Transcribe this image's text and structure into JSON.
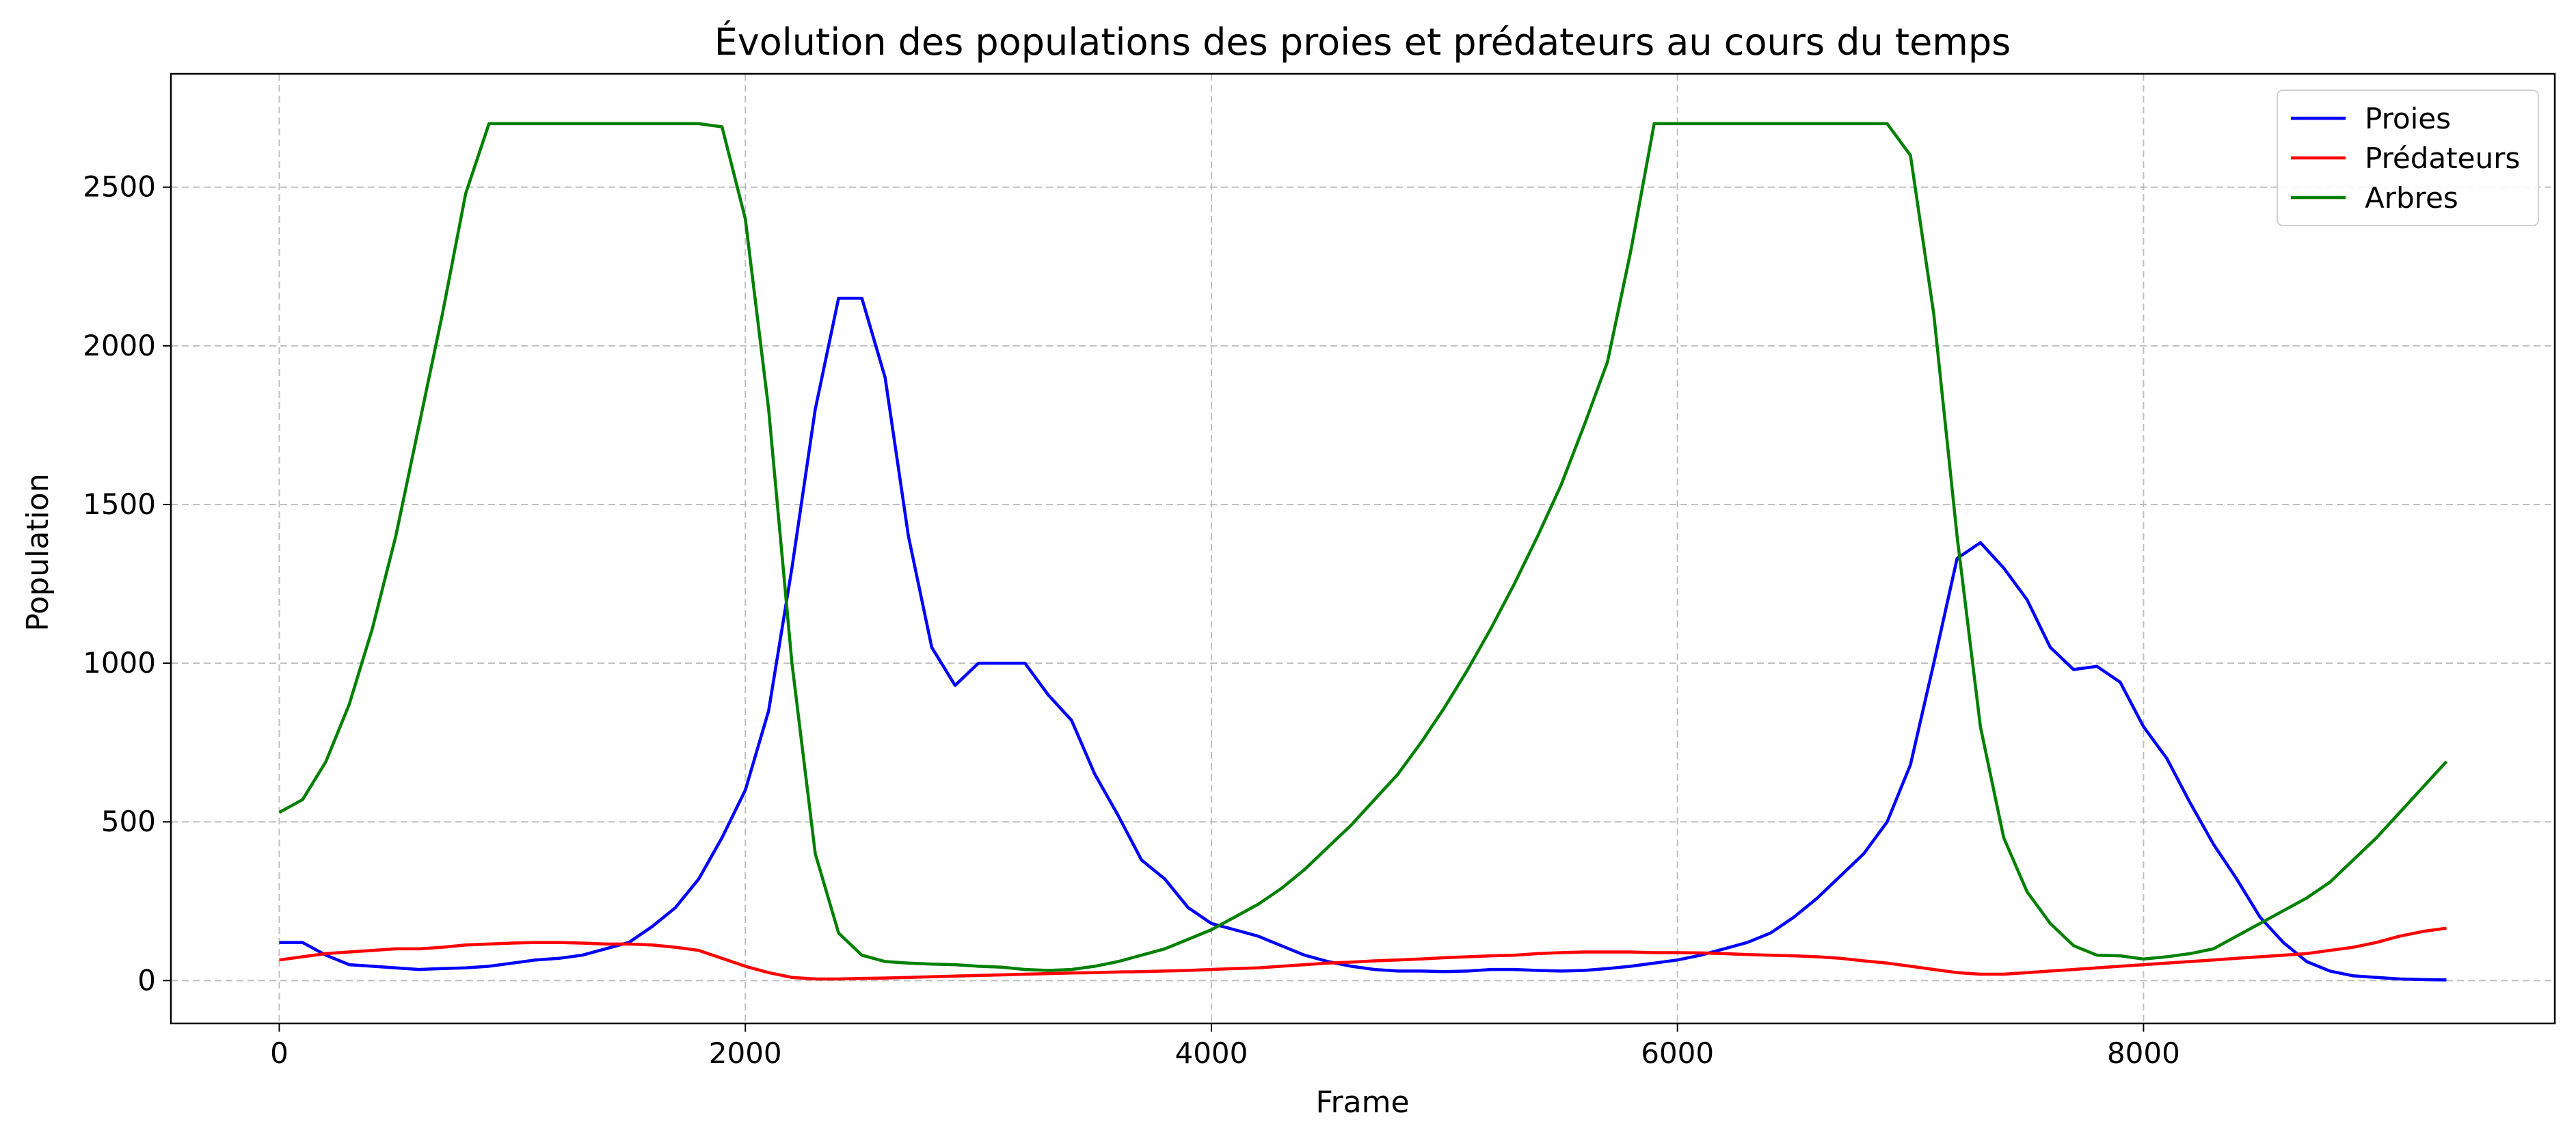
{
  "chart_data": {
    "type": "line",
    "title": "Évolution des populations des proies et prédateurs au cours du temps",
    "xlabel": "Frame",
    "ylabel": "Population",
    "xlim": [
      -465,
      9765
    ],
    "ylim": [
      -135,
      2857
    ],
    "xticks": [
      0,
      2000,
      4000,
      6000,
      8000
    ],
    "yticks": [
      0,
      500,
      1000,
      1500,
      2000,
      2500
    ],
    "grid": true,
    "legend": "upper right",
    "x": [
      0,
      100,
      200,
      300,
      400,
      500,
      600,
      700,
      800,
      900,
      1000,
      1100,
      1200,
      1300,
      1400,
      1500,
      1600,
      1700,
      1800,
      1900,
      2000,
      2100,
      2200,
      2300,
      2400,
      2500,
      2600,
      2700,
      2800,
      2900,
      3000,
      3100,
      3200,
      3300,
      3400,
      3500,
      3600,
      3700,
      3800,
      3900,
      4000,
      4100,
      4200,
      4300,
      4400,
      4500,
      4600,
      4700,
      4800,
      4900,
      5000,
      5100,
      5200,
      5300,
      5400,
      5500,
      5600,
      5700,
      5800,
      5900,
      6000,
      6100,
      6200,
      6300,
      6400,
      6500,
      6600,
      6700,
      6800,
      6900,
      7000,
      7100,
      7200,
      7300,
      7400,
      7500,
      7600,
      7700,
      7800,
      7900,
      8000,
      8100,
      8200,
      8300,
      8400,
      8500,
      8600,
      8700,
      8800,
      8900,
      9000,
      9100,
      9200,
      9300
    ],
    "series": [
      {
        "name": "Proies",
        "color": "#0000ff",
        "values": [
          120,
          120,
          80,
          50,
          45,
          40,
          35,
          38,
          40,
          45,
          55,
          65,
          70,
          80,
          100,
          120,
          170,
          230,
          320,
          450,
          600,
          850,
          1300,
          1800,
          2150,
          2150,
          1900,
          1400,
          1050,
          930,
          1000,
          1000,
          1000,
          900,
          820,
          650,
          520,
          380,
          320,
          230,
          180,
          160,
          140,
          110,
          80,
          60,
          45,
          35,
          30,
          30,
          28,
          30,
          35,
          35,
          32,
          30,
          32,
          38,
          45,
          55,
          65,
          80,
          100,
          120,
          150,
          200,
          260,
          330,
          400,
          500,
          680,
          1000,
          1330,
          1380,
          1300,
          1200,
          1050,
          980,
          990,
          940,
          800,
          700,
          560,
          430,
          320,
          200,
          120,
          60,
          30,
          15,
          10,
          5,
          3,
          2
        ]
      },
      {
        "name": "Prédateurs",
        "color": "#ff0000",
        "values": [
          65,
          75,
          85,
          90,
          95,
          100,
          100,
          105,
          112,
          115,
          118,
          120,
          120,
          118,
          115,
          115,
          112,
          105,
          95,
          70,
          45,
          25,
          10,
          5,
          5,
          7,
          8,
          10,
          12,
          14,
          16,
          18,
          20,
          22,
          24,
          25,
          27,
          28,
          30,
          32,
          35,
          38,
          40,
          45,
          50,
          55,
          58,
          62,
          65,
          68,
          72,
          75,
          78,
          80,
          85,
          88,
          90,
          90,
          90,
          88,
          88,
          87,
          85,
          82,
          80,
          78,
          75,
          70,
          62,
          55,
          45,
          35,
          25,
          20,
          20,
          25,
          30,
          35,
          40,
          45,
          50,
          55,
          60,
          65,
          70,
          75,
          80,
          85,
          95,
          105,
          120,
          140,
          155,
          165
        ]
      },
      {
        "name": "Arbres",
        "color": "#008000",
        "values": [
          530,
          570,
          690,
          870,
          1110,
          1400,
          1750,
          2100,
          2480,
          2700,
          2700,
          2700,
          2700,
          2700,
          2700,
          2700,
          2700,
          2700,
          2700,
          2690,
          2400,
          1800,
          1000,
          400,
          150,
          80,
          60,
          55,
          52,
          50,
          45,
          42,
          35,
          32,
          35,
          45,
          60,
          80,
          100,
          130,
          160,
          200,
          240,
          290,
          350,
          420,
          490,
          570,
          650,
          750,
          860,
          980,
          1110,
          1250,
          1400,
          1560,
          1750,
          1950,
          2300,
          2700,
          2700,
          2700,
          2700,
          2700,
          2700,
          2700,
          2700,
          2700,
          2700,
          2700,
          2600,
          2100,
          1400,
          800,
          450,
          280,
          180,
          110,
          80,
          78,
          68,
          75,
          85,
          100,
          140,
          180,
          220,
          260,
          310,
          380,
          450,
          530,
          610,
          690
        ]
      }
    ]
  }
}
